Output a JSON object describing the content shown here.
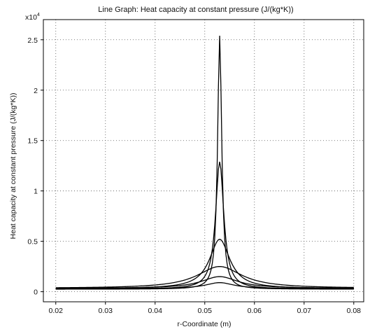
{
  "chart_data": {
    "type": "line",
    "title": "Line Graph: Heat capacity at constant pressure (J/(kg*K))",
    "xlabel": "r-Coordinate (m)",
    "ylabel": "Heat capacity at constant pressure (J/(kg*K))",
    "y_multiplier": {
      "base": "x10",
      "exponent": "4"
    },
    "xlim": [
      0.0175,
      0.082
    ],
    "ylim": [
      -1000,
      27000
    ],
    "x_ticks": [
      0.02,
      0.03,
      0.04,
      0.05,
      0.06,
      0.07,
      0.08
    ],
    "x_tick_labels": [
      "0.02",
      "0.03",
      "0.04",
      "0.05",
      "0.06",
      "0.07",
      "0.08"
    ],
    "y_ticks": [
      0,
      5000,
      10000,
      15000,
      20000,
      25000
    ],
    "y_tick_labels": [
      "0",
      "0.5",
      "1",
      "1.5",
      "2",
      "2.5"
    ],
    "grid": true,
    "line_color": "#000000",
    "series": [
      {
        "peak_x": 0.053,
        "peak_y": 25400,
        "baseline": 250,
        "width": 0.0005,
        "values": []
      },
      {
        "peak_x": 0.053,
        "peak_y": 12900,
        "baseline": 260,
        "width": 0.001,
        "values": []
      },
      {
        "peak_x": 0.053,
        "peak_y": 5200,
        "baseline": 300,
        "width": 0.0025,
        "values": []
      },
      {
        "peak_x": 0.053,
        "peak_y": 2500,
        "baseline": 340,
        "width": 0.0055,
        "values": []
      },
      {
        "peak_x": 0.053,
        "peak_y": 1500,
        "baseline": 330,
        "width": 0.0045,
        "values": []
      },
      {
        "peak_x": 0.053,
        "peak_y": 900,
        "baseline": 310,
        "width": 0.0035,
        "values": []
      }
    ]
  }
}
